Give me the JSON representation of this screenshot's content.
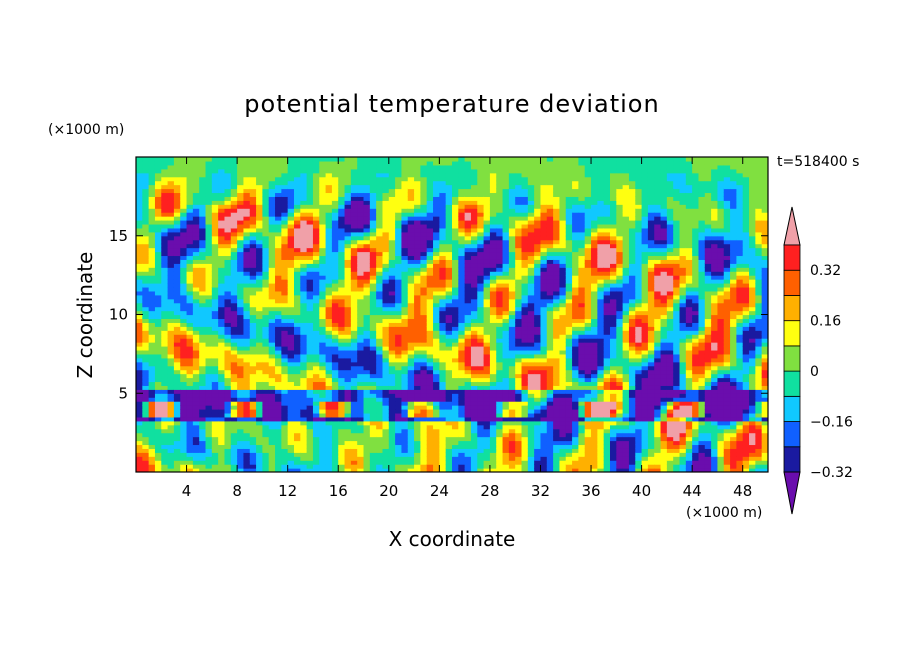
{
  "chart_data": {
    "type": "heatmap",
    "title": "potential temperature deviation",
    "xlabel": "X coordinate",
    "ylabel": "Z coordinate",
    "x_unit": "(×1000 m)",
    "y_unit": "(×1000 m)",
    "time_label": "t=518400 s",
    "xlim": [
      0,
      50
    ],
    "ylim": [
      0,
      20
    ],
    "x_ticks": [
      4,
      8,
      12,
      16,
      20,
      24,
      28,
      32,
      36,
      40,
      44,
      48
    ],
    "y_ticks": [
      5,
      10,
      15
    ],
    "colorbar": {
      "tick_labels": [
        "0.32",
        "0.16",
        "0",
        "−0.16",
        "−0.32"
      ],
      "tick_values": [
        0.32,
        0.16,
        0,
        -0.16,
        -0.32
      ],
      "levels": [
        -0.4,
        -0.32,
        -0.24,
        -0.16,
        -0.08,
        0,
        0.08,
        0.16,
        0.24,
        0.32,
        0.4
      ],
      "colors": [
        "#6a0dad",
        "#1a1aa0",
        "#1060ff",
        "#10c8ff",
        "#10e0a0",
        "#80e040",
        "#ffff10",
        "#ffb000",
        "#ff6000",
        "#ff2020",
        "#f0a0a8"
      ],
      "extend": "both"
    },
    "grid": false
  }
}
